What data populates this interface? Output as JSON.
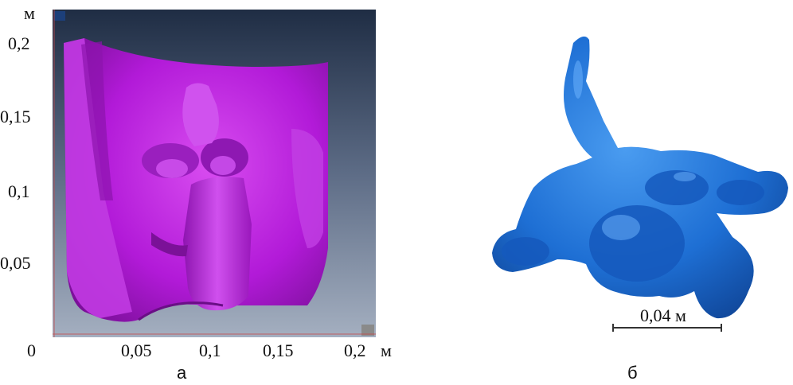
{
  "panel_a": {
    "letter": "а",
    "unit": "м",
    "y_ticks": [
      "0,2",
      "0,15",
      "0,1",
      "0,05",
      "0"
    ],
    "x_ticks": [
      "0,05",
      "0,1",
      "0,15",
      "0,2"
    ],
    "colors": {
      "surface": "#b01ad6",
      "background_top": "#223046",
      "background_bottom": "#9aa7ba"
    }
  },
  "panel_b": {
    "letter": "б",
    "scale_label": "0,04 м",
    "colors": {
      "surface": "#1e73d8"
    }
  }
}
